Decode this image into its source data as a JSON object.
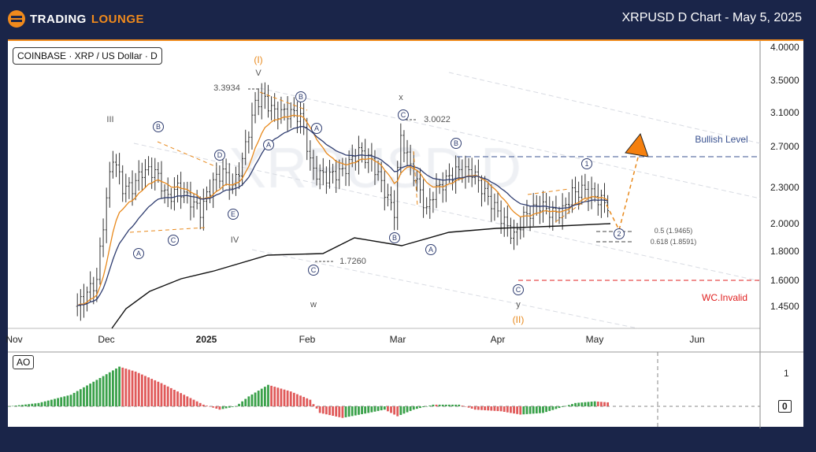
{
  "header": {
    "brand_part1": "TradingLounge",
    "brand_part1_text": "TRADING",
    "brand_part2_text": "LOUNGE",
    "title": "XRPUSD D Chart - May 5, 2025"
  },
  "chart_info": {
    "symbol_label": "COINBASE · XRP / US Dollar · D",
    "watermark": "XRPUSD D",
    "indicator_label": "AO"
  },
  "colors": {
    "header_bg": "#1a2549",
    "accent": "#f08a1c",
    "wave_label": "#2f3d70",
    "bullish": "#3b5391",
    "invalid": "#e02020",
    "ao_up": "#3aa14a",
    "ao_down": "#e05a5a"
  },
  "annotations": {
    "wave_I": "(I)",
    "wave_V": "V",
    "high_3": "3.3934",
    "wave_III": "III",
    "wave_IV": "IV",
    "wave_w": "w",
    "wave_x": "x",
    "wave_y": "y",
    "wave_II": "(II)",
    "low_1": "1.7260",
    "high_2": "3.0022",
    "circ_A": "A",
    "circ_B": "B",
    "circ_C": "C",
    "circ_D": "D",
    "circ_E": "E",
    "circ_1": "1",
    "circ_2": "2",
    "fib_05": "0.5 (1.9465)",
    "fib_0618": "0.618 (1.8591)",
    "bullish_level": "Bullish Level",
    "invalid_level": "WC.Invalid"
  },
  "chart_data": {
    "type": "ohlc",
    "title": "XRPUSD D Chart - May 5, 2025",
    "y_scale": "log",
    "ylim": [
      1.38,
      4.05
    ],
    "y_ticks": [
      "4.0000",
      "3.5000",
      "3.1000",
      "2.7000",
      "2.3000",
      "2.0000",
      "1.8000",
      "1.6000",
      "1.4500"
    ],
    "x_ticks": [
      "Nov",
      "Dec",
      "2025",
      "Feb",
      "Mar",
      "Apr",
      "May",
      "Jun"
    ],
    "levels": {
      "bullish": 2.62,
      "invalid": 1.6,
      "fib_0.5": 1.9465,
      "fib_0.618": 1.8591,
      "high": 3.3934,
      "low": 1.726,
      "high_x": 3.0022
    },
    "close_keypoints": [
      [
        "2024-11-22",
        1.45
      ],
      [
        "2024-11-28",
        1.6
      ],
      [
        "2024-12-01",
        2.2
      ],
      [
        "2024-12-03",
        2.6
      ],
      [
        "2024-12-06",
        2.3
      ],
      [
        "2024-12-09",
        2.3
      ],
      [
        "2024-12-12",
        2.45
      ],
      [
        "2024-12-16",
        2.45
      ],
      [
        "2024-12-20",
        2.2
      ],
      [
        "2024-12-23",
        2.3
      ],
      [
        "2024-12-30",
        2.1
      ],
      [
        "2025-01-03",
        2.35
      ],
      [
        "2025-01-06",
        2.45
      ],
      [
        "2025-01-09",
        2.3
      ],
      [
        "2025-01-12",
        2.55
      ],
      [
        "2025-01-16",
        3.2
      ],
      [
        "2025-01-18",
        3.3
      ],
      [
        "2025-01-22",
        3.1
      ],
      [
        "2025-01-27",
        3.1
      ],
      [
        "2025-01-30",
        3.05
      ],
      [
        "2025-02-02",
        2.55
      ],
      [
        "2025-02-03",
        2.45
      ],
      [
        "2025-02-07",
        2.4
      ],
      [
        "2025-02-12",
        2.45
      ],
      [
        "2025-02-17",
        2.65
      ],
      [
        "2025-02-21",
        2.55
      ],
      [
        "2025-02-26",
        2.2
      ],
      [
        "2025-02-28",
        2.1
      ],
      [
        "2025-03-02",
        2.8
      ],
      [
        "2025-03-05",
        2.5
      ],
      [
        "2025-03-10",
        2.1
      ],
      [
        "2025-03-12",
        2.25
      ],
      [
        "2025-03-19",
        2.45
      ],
      [
        "2025-03-24",
        2.45
      ],
      [
        "2025-03-28",
        2.25
      ],
      [
        "2025-04-02",
        2.05
      ],
      [
        "2025-04-06",
        1.9
      ],
      [
        "2025-04-09",
        2.05
      ],
      [
        "2025-04-14",
        2.15
      ],
      [
        "2025-04-18",
        2.08
      ],
      [
        "2025-04-21",
        2.1
      ],
      [
        "2025-04-24",
        2.25
      ],
      [
        "2025-04-28",
        2.28
      ],
      [
        "2025-05-02",
        2.2
      ],
      [
        "2025-05-05",
        2.15
      ]
    ],
    "ao": {
      "y_ticks": [
        "1",
        "0"
      ],
      "keypoints": [
        [
          "2024-11-01",
          0
        ],
        [
          "2024-11-10",
          0.1
        ],
        [
          "2024-11-20",
          0.35
        ],
        [
          "2024-11-28",
          0.8
        ],
        [
          "2024-12-05",
          1.2
        ],
        [
          "2024-12-10",
          1.05
        ],
        [
          "2024-12-18",
          0.7
        ],
        [
          "2024-12-26",
          0.3
        ],
        [
          "2024-12-31",
          0.05
        ],
        [
          "2025-01-05",
          -0.1
        ],
        [
          "2025-01-10",
          0
        ],
        [
          "2025-01-14",
          0.3
        ],
        [
          "2025-01-20",
          0.65
        ],
        [
          "2025-01-27",
          0.45
        ],
        [
          "2025-02-02",
          0.2
        ],
        [
          "2025-02-05",
          -0.2
        ],
        [
          "2025-02-12",
          -0.35
        ],
        [
          "2025-02-20",
          -0.2
        ],
        [
          "2025-02-25",
          -0.1
        ],
        [
          "2025-03-01",
          -0.3
        ],
        [
          "2025-03-06",
          -0.1
        ],
        [
          "2025-03-12",
          0.05
        ],
        [
          "2025-03-20",
          0.05
        ],
        [
          "2025-03-25",
          -0.1
        ],
        [
          "2025-04-02",
          -0.15
        ],
        [
          "2025-04-08",
          -0.25
        ],
        [
          "2025-04-15",
          -0.2
        ],
        [
          "2025-04-20",
          -0.05
        ],
        [
          "2025-04-25",
          0.1
        ],
        [
          "2025-05-01",
          0.15
        ],
        [
          "2025-05-05",
          0.12
        ]
      ]
    }
  }
}
